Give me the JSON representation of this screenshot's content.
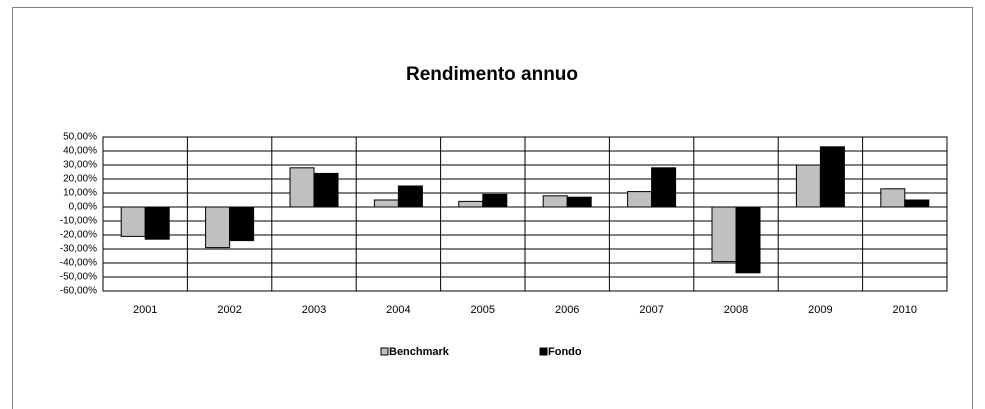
{
  "chart_data": {
    "type": "bar",
    "title": "Rendimento annuo",
    "categories": [
      "2001",
      "2002",
      "2003",
      "2004",
      "2005",
      "2006",
      "2007",
      "2008",
      "2009",
      "2010"
    ],
    "series": [
      {
        "name": "Benchmark",
        "color": "#c0c0c0",
        "values": [
          -21,
          -29,
          28,
          5,
          4,
          8,
          11,
          -39,
          30,
          13
        ]
      },
      {
        "name": "Fondo",
        "color": "#000000",
        "values": [
          -23,
          -24,
          24,
          15,
          9,
          7,
          28,
          -47,
          43,
          5
        ]
      }
    ],
    "ylim": [
      -60,
      50
    ],
    "yticks": [
      {
        "value": 50,
        "label": "50,00%"
      },
      {
        "value": 40,
        "label": "40,00%"
      },
      {
        "value": 30,
        "label": "30,00%"
      },
      {
        "value": 20,
        "label": "20,00%"
      },
      {
        "value": 10,
        "label": "10,00%"
      },
      {
        "value": 0,
        "label": "0,00%"
      },
      {
        "value": -10,
        "label": "-10,00%"
      },
      {
        "value": -20,
        "label": "-20,00%"
      },
      {
        "value": -30,
        "label": "-30,00%"
      },
      {
        "value": -40,
        "label": "-40,00%"
      },
      {
        "value": -50,
        "label": "-50,00%"
      },
      {
        "value": -60,
        "label": "-60,00%"
      }
    ],
    "grid": true,
    "legend": "bottom"
  }
}
